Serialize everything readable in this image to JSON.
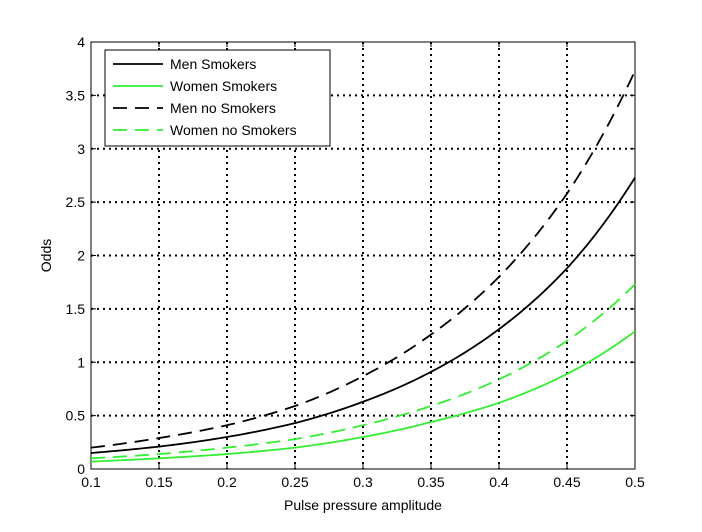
{
  "chart_data": {
    "type": "line",
    "xlabel": "Pulse pressure amplitude",
    "ylabel": "Odds",
    "xlim": [
      0.1,
      0.5
    ],
    "ylim": [
      0,
      4
    ],
    "xticks": [
      0.1,
      0.15,
      0.2,
      0.25,
      0.3,
      0.35,
      0.4,
      0.45,
      0.5
    ],
    "yticks": [
      0,
      0.5,
      1,
      1.5,
      2,
      2.5,
      3,
      3.5,
      4
    ],
    "xtick_labels": [
      "0.1",
      "0.15",
      "0.2",
      "0.25",
      "0.3",
      "0.35",
      "0.4",
      "0.45",
      "0.5"
    ],
    "ytick_labels": [
      "0",
      "0.5",
      "1",
      "1.5",
      "2",
      "2.5",
      "3",
      "3.5",
      "4"
    ],
    "grid": true,
    "legend_position": "top-left",
    "series": [
      {
        "name": "Men Smokers",
        "color": "#000000",
        "line_style": "solid",
        "x": [
          0.1,
          0.15,
          0.2,
          0.25,
          0.3,
          0.35,
          0.4,
          0.45,
          0.5
        ],
        "values": [
          0.15,
          0.21,
          0.3,
          0.43,
          0.63,
          0.91,
          1.31,
          1.88,
          2.73
        ]
      },
      {
        "name": "Women Smokers",
        "color": "#33ee33",
        "line_style": "solid",
        "x": [
          0.1,
          0.15,
          0.2,
          0.25,
          0.3,
          0.35,
          0.4,
          0.45,
          0.5
        ],
        "values": [
          0.07,
          0.1,
          0.14,
          0.2,
          0.3,
          0.44,
          0.62,
          0.89,
          1.29
        ]
      },
      {
        "name": "Men no Smokers",
        "color": "#000000",
        "line_style": "dashed",
        "x": [
          0.1,
          0.15,
          0.2,
          0.25,
          0.3,
          0.35,
          0.4,
          0.45,
          0.5
        ],
        "values": [
          0.2,
          0.29,
          0.41,
          0.59,
          0.87,
          1.26,
          1.8,
          2.58,
          3.73
        ]
      },
      {
        "name": "Women no Smokers",
        "color": "#33ee33",
        "line_style": "dashed",
        "x": [
          0.1,
          0.15,
          0.2,
          0.25,
          0.3,
          0.35,
          0.4,
          0.45,
          0.5
        ],
        "values": [
          0.1,
          0.14,
          0.2,
          0.28,
          0.41,
          0.59,
          0.84,
          1.2,
          1.73
        ]
      }
    ]
  }
}
